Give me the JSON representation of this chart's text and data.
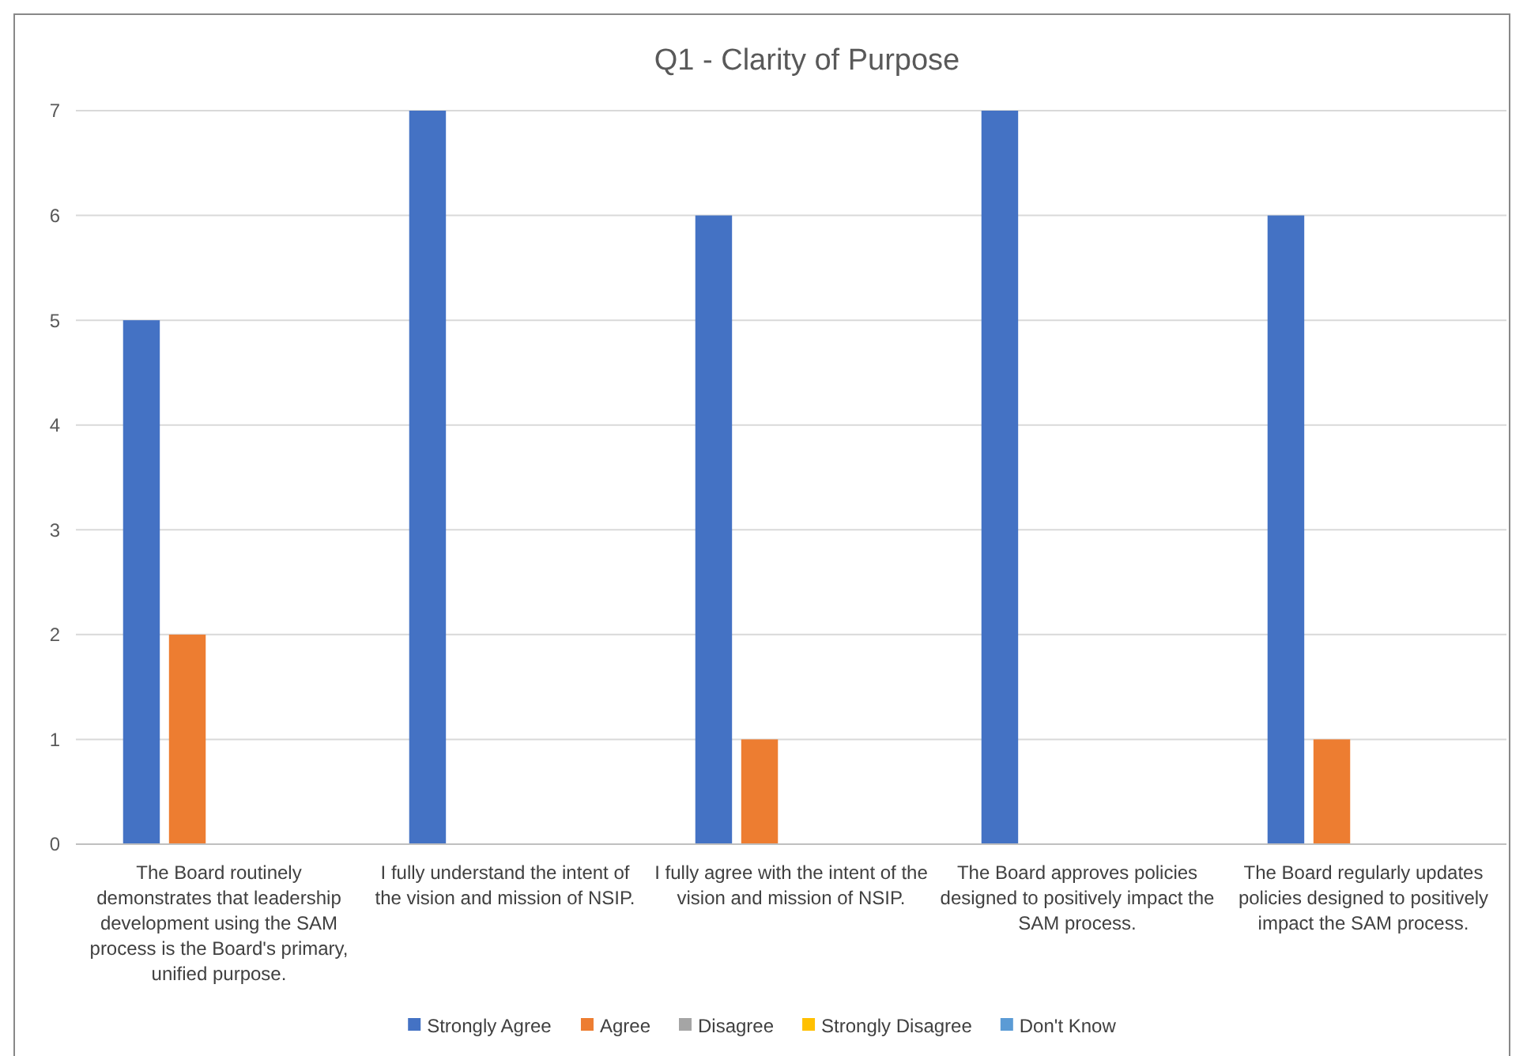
{
  "chart_data": {
    "type": "bar",
    "title": "Q1 - Clarity of Purpose",
    "categories": [
      "The Board routinely demonstrates that leadership development using the SAM process is the Board's primary, unified purpose.",
      "I fully understand the intent of the vision and mission of NSIP.",
      "I fully agree with the intent of the vision and mission of NSIP.",
      "The Board approves policies designed to positively impact the SAM process.",
      "The Board regularly updates policies designed to positively impact the SAM process."
    ],
    "series": [
      {
        "name": "Strongly Agree",
        "color": "#4472c4",
        "values": [
          5,
          7,
          6,
          7,
          6
        ]
      },
      {
        "name": "Agree",
        "color": "#ed7d31",
        "values": [
          2,
          0,
          1,
          0,
          1
        ]
      },
      {
        "name": "Disagree",
        "color": "#a5a5a5",
        "values": [
          0,
          0,
          0,
          0,
          0
        ]
      },
      {
        "name": "Strongly Disagree",
        "color": "#ffc000",
        "values": [
          0,
          0,
          0,
          0,
          0
        ]
      },
      {
        "name": "Don't Know",
        "color": "#5b9bd5",
        "values": [
          0,
          0,
          0,
          0,
          0
        ]
      }
    ],
    "ylim": [
      0,
      7
    ],
    "yticks": [
      0,
      1,
      2,
      3,
      4,
      5,
      6,
      7
    ],
    "grid": "y",
    "legend": "bottom"
  }
}
